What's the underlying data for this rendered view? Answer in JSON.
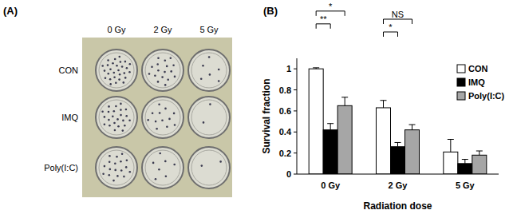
{
  "panel_a": {
    "label": "(A)",
    "columns": [
      "0 Gy",
      "2 Gy",
      "5 Gy"
    ],
    "rows": [
      "CON",
      "IMQ",
      "Poly(I:C)"
    ]
  },
  "chart_data": {
    "type": "bar",
    "title": "(B)",
    "x_label": "Radiation dose",
    "y_label": "Survival fraction",
    "categories": [
      "0 Gy",
      "2 Gy",
      "5 Gy"
    ],
    "series": [
      {
        "name": "CON",
        "color": "#ffffff",
        "values": [
          1.0,
          0.63,
          0.21
        ],
        "errors": [
          0.01,
          0.07,
          0.12
        ]
      },
      {
        "name": "IMQ",
        "color": "#000000",
        "values": [
          0.42,
          0.26,
          0.1
        ],
        "errors": [
          0.06,
          0.04,
          0.04
        ]
      },
      {
        "name": "Poly(I:C)",
        "color": "#a6a6a6",
        "values": [
          0.65,
          0.42,
          0.18
        ],
        "errors": [
          0.08,
          0.05,
          0.04
        ]
      }
    ],
    "ylim": [
      0,
      1.1
    ],
    "yticks": [
      0,
      0.2,
      0.4,
      0.6,
      0.8,
      1
    ],
    "legend": "top-right",
    "grid": false,
    "annotations": [
      {
        "text": "**",
        "category": "0 Gy",
        "series": [
          "CON",
          "IMQ"
        ]
      },
      {
        "text": "*",
        "category": "0 Gy",
        "series": [
          "CON",
          "Poly(I:C)"
        ]
      },
      {
        "text": "*",
        "category": "2 Gy",
        "series": [
          "CON",
          "IMQ"
        ]
      },
      {
        "text": "NS",
        "category": "2 Gy",
        "series": [
          "CON",
          "Poly(I:C)"
        ]
      }
    ]
  }
}
